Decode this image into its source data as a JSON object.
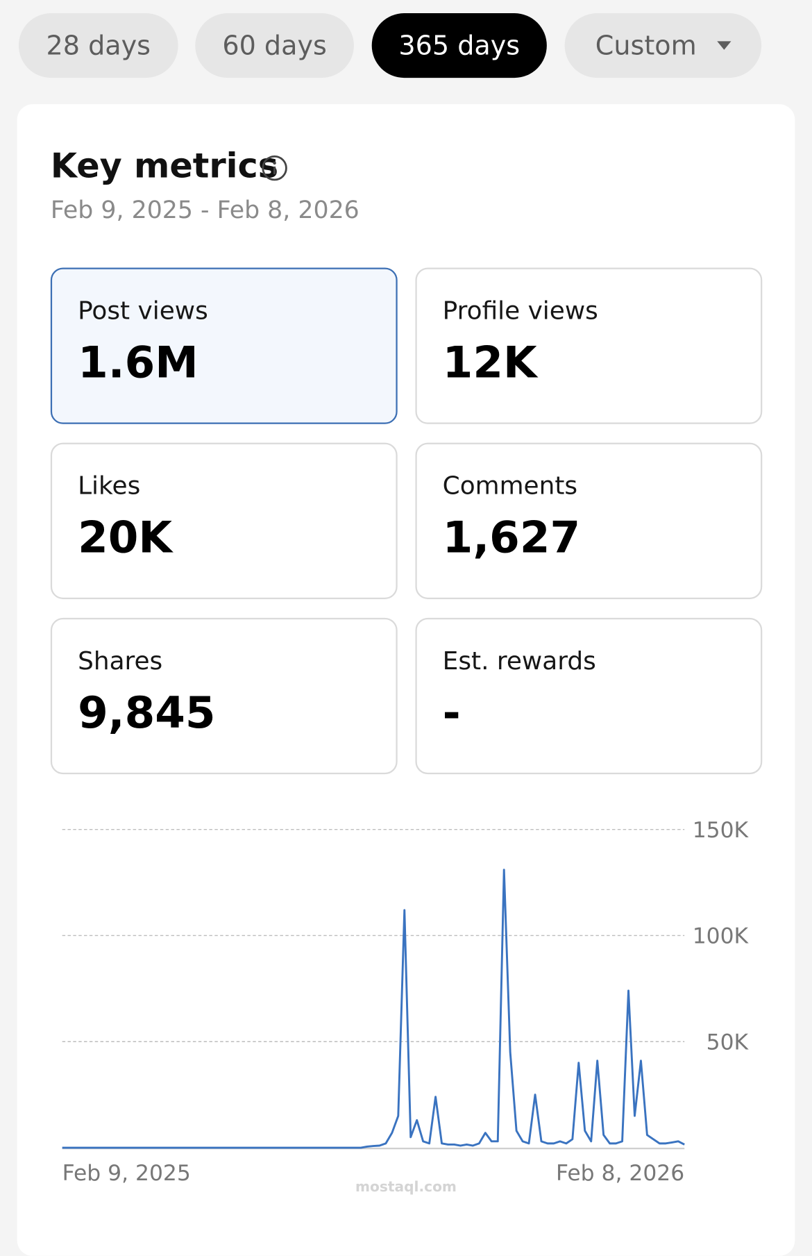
{
  "tabs": [
    {
      "label": "28 days"
    },
    {
      "label": "60 days"
    },
    {
      "label": "365 days"
    },
    {
      "label": "Custom"
    }
  ],
  "card": {
    "title": "Key metrics",
    "date_range": "Feb 9, 2025 - Feb 8, 2026",
    "metrics": [
      {
        "label": "Post views",
        "value": "1.6M"
      },
      {
        "label": "Profile views",
        "value": "12K"
      },
      {
        "label": "Likes",
        "value": "20K"
      },
      {
        "label": "Comments",
        "value": "1,627"
      },
      {
        "label": "Shares",
        "value": "9,845"
      },
      {
        "label": "Est. rewards",
        "value": "-"
      }
    ]
  },
  "watermark": "mostaql.com",
  "chart_data": {
    "type": "line",
    "color": "#3a73c0",
    "grid": true,
    "categories": [
      "Feb 9, 2025",
      null,
      null,
      null,
      null,
      null,
      null,
      null,
      null,
      null,
      null,
      null,
      null,
      null,
      null,
      null,
      null,
      null,
      null,
      null,
      null,
      null,
      null,
      null,
      null,
      null,
      null,
      null,
      null,
      null,
      null,
      null,
      null,
      null,
      null,
      null,
      null,
      null,
      null,
      null,
      null,
      null,
      null,
      null,
      null,
      null,
      null,
      null,
      null,
      null,
      null,
      null,
      null,
      null,
      null,
      null,
      null,
      null,
      null,
      null,
      null,
      null,
      null,
      null,
      null,
      null,
      null,
      null,
      null,
      null,
      null,
      null,
      null,
      null,
      null,
      null,
      null,
      null,
      null,
      null,
      null,
      null,
      null,
      null,
      null,
      null,
      null,
      null,
      null,
      null,
      null,
      null,
      null,
      null,
      null,
      null,
      null,
      null,
      null,
      null,
      "Feb 8, 2026"
    ],
    "values": [
      0,
      0,
      0,
      0,
      0,
      0,
      0,
      0,
      0,
      0,
      0,
      0,
      0,
      0,
      0,
      0,
      0,
      0,
      0,
      0,
      0,
      0,
      0,
      0,
      0,
      0,
      0,
      0,
      0,
      0,
      0,
      0,
      0,
      0,
      0,
      0,
      0,
      0,
      0,
      0,
      0,
      0,
      0,
      0,
      0,
      0,
      0,
      0,
      0,
      500,
      800,
      1000,
      2000,
      7000,
      15000,
      112000,
      5000,
      13000,
      3000,
      2000,
      24000,
      2000,
      1500,
      1500,
      1000,
      1500,
      1000,
      2000,
      7000,
      3000,
      3000,
      131000,
      45000,
      8000,
      3000,
      2000,
      25000,
      3000,
      2000,
      2000,
      3000,
      2000,
      4000,
      40000,
      8000,
      3000,
      41000,
      6000,
      2000,
      2000,
      3000,
      74000,
      15000,
      41000,
      6000,
      4000,
      2000,
      2000,
      2500,
      3000,
      1500
    ],
    "ylim": [
      0,
      150000
    ],
    "yticks": [
      {
        "value": 50000,
        "label": "50K"
      },
      {
        "value": 100000,
        "label": "100K"
      },
      {
        "value": 150000,
        "label": "150K"
      }
    ]
  }
}
